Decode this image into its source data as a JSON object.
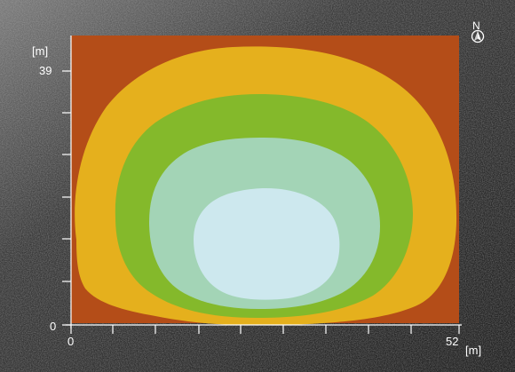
{
  "scale_unit": "[m]",
  "y_axis": {
    "unit": "[m]",
    "labels": [
      "39",
      "0"
    ]
  },
  "x_axis": {
    "unit": "[m]",
    "labels": [
      "0",
      "52"
    ]
  },
  "compass": {
    "letter": "N",
    "icon": "north-arrow-icon"
  },
  "colors": {
    "outer": "#B44D18",
    "band_1": "#E5B01D",
    "band_2": "#84B92B",
    "band_3": "#A3D4B6",
    "core": "#CDE8EE",
    "axis": "#FFFFFF",
    "background": "#2B2B2B"
  }
}
